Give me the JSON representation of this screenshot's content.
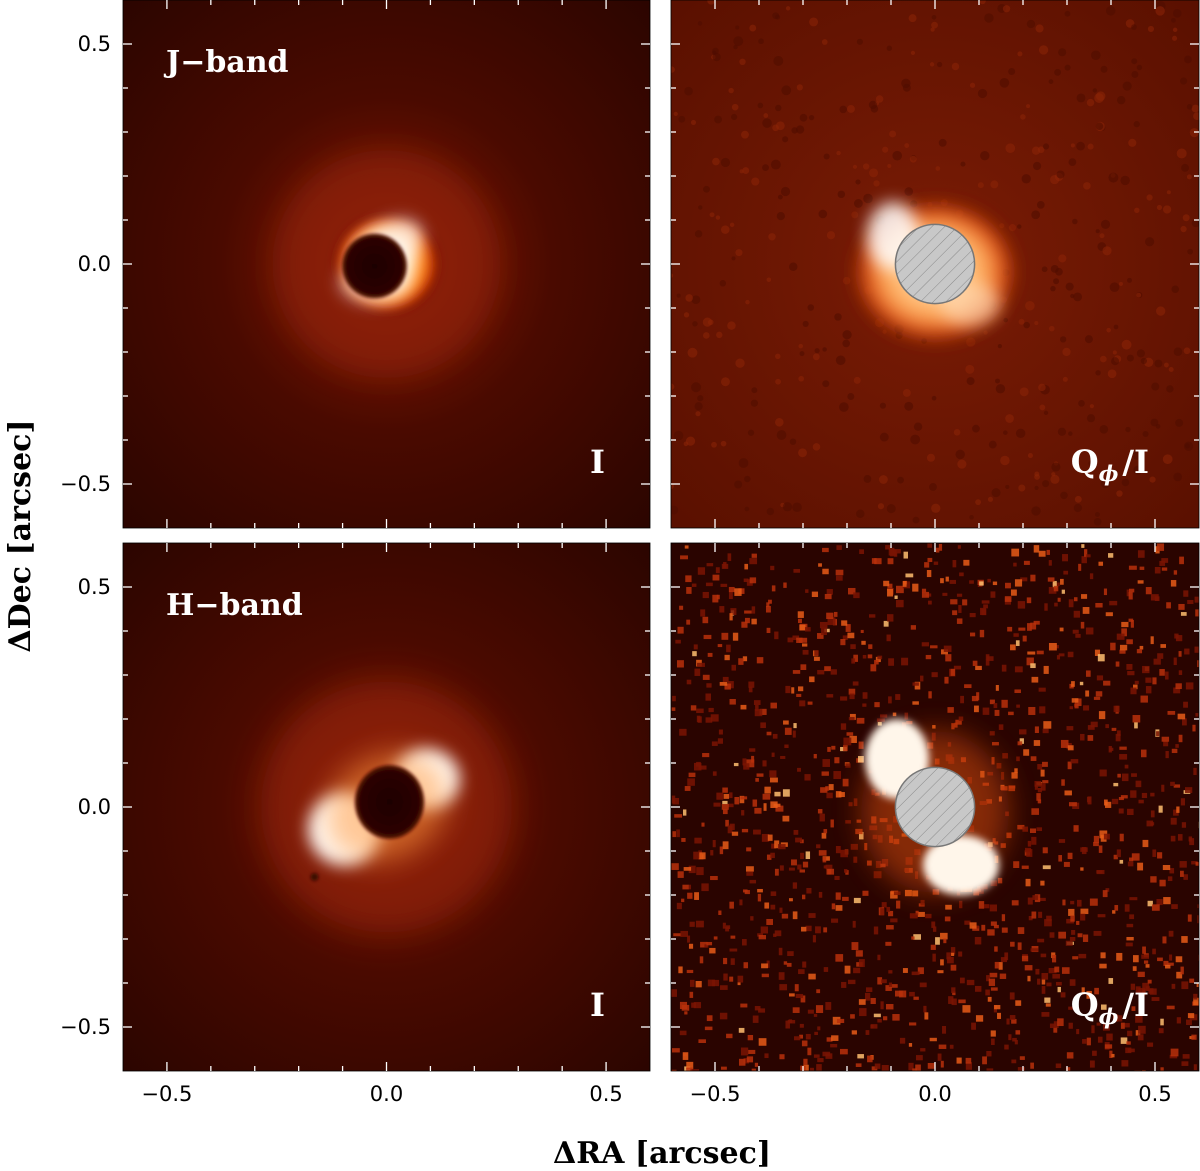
{
  "chart_data": {
    "type": "heatmap",
    "xlabel": "ΔRA [arcsec]",
    "ylabel": "ΔDec [arcsec]",
    "xlim": [
      -0.6,
      0.6
    ],
    "ylim": [
      -0.6,
      0.6
    ],
    "xticks": [
      -0.5,
      0.0,
      0.5
    ],
    "yticks": [
      -0.5,
      0.0,
      0.5
    ],
    "xtick_labels": [
      "−0.5",
      "0.0",
      "0.5"
    ],
    "ytick_labels": [
      "−0.5",
      "0.0",
      "0.5"
    ],
    "colormap": "gist_heat",
    "mask_color": "#c8c8c8",
    "panels": [
      {
        "row": 0,
        "col": 0,
        "band_label": "J−band",
        "stokes": "I",
        "stokes_sub": "",
        "mask": false,
        "style": "ring",
        "inner_radius": 0.07,
        "ring_radius": 0.1
      },
      {
        "row": 0,
        "col": 1,
        "band_label": "",
        "stokes": "Q",
        "stokes_sub": "ϕ",
        "stokes_tail": "/I",
        "mask": true,
        "mask_radius": 0.09,
        "style": "disk",
        "ring_radius": 0.17
      },
      {
        "row": 1,
        "col": 0,
        "band_label": "H−band",
        "stokes": "I",
        "stokes_sub": "",
        "mask": false,
        "style": "lobes",
        "inner_radius": 0.075,
        "ring_radius": 0.11
      },
      {
        "row": 1,
        "col": 1,
        "band_label": "",
        "stokes": "Q",
        "stokes_sub": "ϕ",
        "stokes_tail": "/I",
        "mask": true,
        "mask_radius": 0.09,
        "style": "noisy-lobes",
        "ring_radius": 0.16
      }
    ]
  }
}
